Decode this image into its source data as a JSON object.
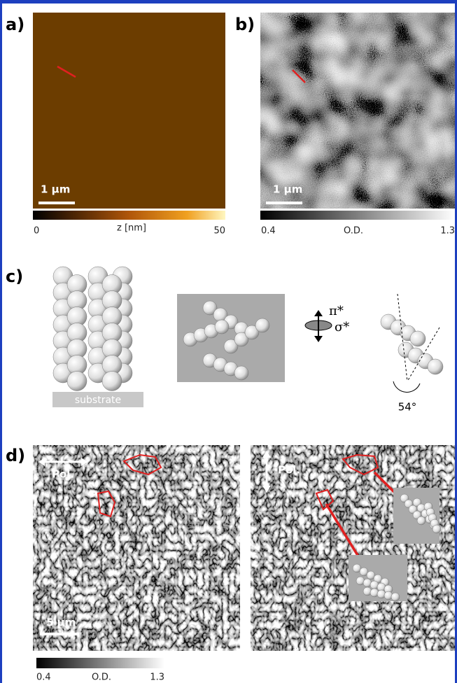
{
  "panels": {
    "a": {
      "label": "a)",
      "scale_bar": "1 µm",
      "colorbar": {
        "min": "0",
        "title": "z [nm]",
        "max": "50"
      }
    },
    "b": {
      "label": "b)",
      "scale_bar": "1 µm",
      "colorbar": {
        "min": "0.4",
        "title": "O.D.",
        "max": "1.3"
      }
    },
    "c": {
      "label": "c)",
      "substrate": "substrate",
      "pi": "π*",
      "sigma": "σ*",
      "angle": "54°"
    },
    "d": {
      "label": "d)",
      "left": {
        "pol": "Pol.",
        "scale_bar": "5 µm"
      },
      "right": {
        "pol": "Pol."
      },
      "colorbar": {
        "min": "0.4",
        "title": "O.D.",
        "max": "1.3"
      }
    }
  }
}
